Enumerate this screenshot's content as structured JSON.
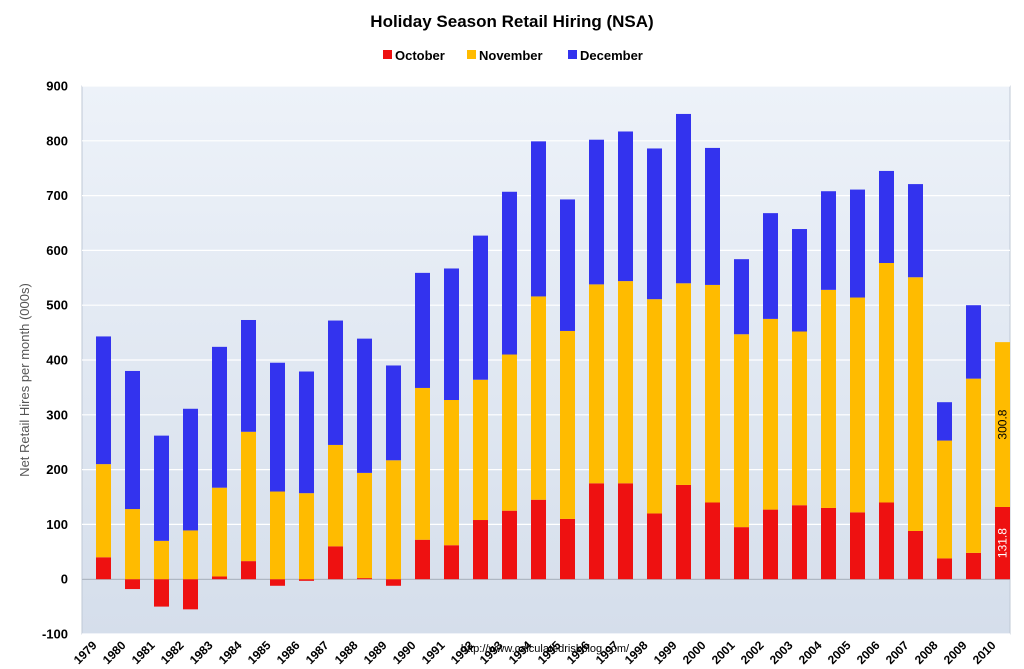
{
  "chart_data": {
    "type": "bar",
    "stacked": true,
    "title": "Holiday Season Retail Hiring (NSA)",
    "ylabel": "Net Retail Hires per month (000s)",
    "xlabel": "",
    "ylim": [
      -100,
      900
    ],
    "yticks": [
      -100,
      0,
      100,
      200,
      300,
      400,
      500,
      600,
      700,
      800,
      900
    ],
    "grid": true,
    "legend_position": "top-center",
    "categories": [
      "1979",
      "1980",
      "1981",
      "1982",
      "1983",
      "1984",
      "1985",
      "1986",
      "1987",
      "1988",
      "1989",
      "1990",
      "1991",
      "1992",
      "1993",
      "1994",
      "1995",
      "1996",
      "1997",
      "1998",
      "1999",
      "2000",
      "2001",
      "2002",
      "2003",
      "2004",
      "2005",
      "2006",
      "2007",
      "2008",
      "2009",
      "2010"
    ],
    "series": [
      {
        "name": "October",
        "color": "#ee1111",
        "values": [
          40,
          -18,
          -50,
          -55,
          5,
          33,
          -12,
          -3,
          60,
          2,
          -12,
          72,
          62,
          108,
          125,
          145,
          110,
          175,
          175,
          120,
          172,
          140,
          95,
          127,
          135,
          130,
          122,
          140,
          88,
          38,
          48,
          131.8
        ]
      },
      {
        "name": "November",
        "color": "#ffbb00",
        "values": [
          170,
          128,
          70,
          89,
          162,
          236,
          160,
          157,
          185,
          192,
          217,
          277,
          265,
          256,
          285,
          371,
          343,
          363,
          369,
          391,
          368,
          397,
          352,
          348,
          317,
          398,
          392,
          437,
          463,
          215,
          318,
          300.8
        ]
      },
      {
        "name": "December",
        "color": "#3333ee",
        "values": [
          233,
          252,
          192,
          222,
          257,
          204,
          235,
          222,
          227,
          245,
          173,
          210,
          240,
          263,
          297,
          283,
          240,
          264,
          273,
          275,
          309,
          250,
          137,
          193,
          187,
          180,
          197,
          168,
          170,
          70,
          134,
          0
        ]
      }
    ],
    "data_labels": [
      {
        "category": "2010",
        "series": "October",
        "text": "131.8"
      },
      {
        "category": "2010",
        "series": "November",
        "text": "300.8"
      }
    ]
  },
  "footer": {
    "source": "http://www.calculatedriskblog.com/"
  },
  "colors": {
    "background_top": "#e9eef6",
    "background_bottom": "#d6e0ee",
    "frame": "#bfc8d6"
  }
}
